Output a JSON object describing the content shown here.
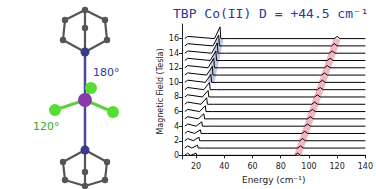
{
  "chart_data": {
    "type": "line",
    "title": "TBP Co(II) D = +44.5 cm⁻¹",
    "x_label": "Energy (cm⁻¹)",
    "y_label": "Magnetic Field (Tesla)",
    "annotations": [
      "180°",
      "120°"
    ],
    "xlim": [
      10,
      140
    ],
    "xticks": [
      20,
      40,
      60,
      80,
      100,
      120,
      140
    ],
    "ylim": [
      -0.5,
      18
    ],
    "yticks": [
      0,
      2,
      4,
      6,
      8,
      10,
      12,
      14,
      16
    ],
    "grid": false,
    "series": [
      {
        "color": "#e8a0a8",
        "line_style": "band",
        "x": [
          92,
          120
        ],
        "values": [
          0,
          16
        ]
      },
      {
        "color": "#a8b8d8",
        "line_style": "band",
        "x": [
          30.5,
          37
        ],
        "values": [
          10,
          16
        ]
      },
      {
        "color": "#000000",
        "line_style": "solid",
        "x": [
          12,
          14,
          16,
          20,
          20.5,
          25,
          90,
          92,
          94,
          140
        ],
        "values": [
          0,
          0.3,
          0,
          0.3,
          0,
          0,
          0,
          0.3,
          0,
          0
        ]
      },
      {
        "color": "#000000",
        "line_style": "solid",
        "x": [
          12,
          14,
          17,
          21,
          21.5,
          26,
          92,
          94,
          96,
          140
        ],
        "values": [
          1,
          1.3,
          1,
          1.4,
          1,
          1,
          1,
          1.3,
          1,
          1
        ]
      },
      {
        "color": "#000000",
        "line_style": "solid",
        "x": [
          12,
          14,
          18,
          22,
          22.5,
          27,
          93.5,
          95.5,
          97.5,
          140
        ],
        "values": [
          2,
          2.3,
          2,
          2.5,
          2,
          2,
          2,
          2.3,
          2,
          2
        ]
      },
      {
        "color": "#000000",
        "line_style": "solid",
        "x": [
          12,
          14,
          19,
          23,
          23.5,
          28,
          95,
          97,
          99,
          140
        ],
        "values": [
          3,
          3.3,
          3,
          3.5,
          3,
          3,
          3,
          3.3,
          3,
          3
        ]
      },
      {
        "color": "#000000",
        "line_style": "solid",
        "x": [
          12,
          14,
          20,
          24,
          24.5,
          29,
          97,
          99,
          101,
          140
        ],
        "values": [
          4,
          4.3,
          4,
          4.6,
          4,
          4,
          4,
          4.3,
          4,
          4
        ]
      },
      {
        "color": "#000000",
        "line_style": "solid",
        "x": [
          12,
          14,
          21.5,
          25.5,
          26,
          30.5,
          99,
          101,
          103,
          140
        ],
        "values": [
          5,
          5.3,
          5,
          5.7,
          5,
          5,
          5,
          5.3,
          5,
          5
        ]
      },
      {
        "color": "#000000",
        "line_style": "solid",
        "x": [
          12,
          14,
          22.5,
          26.5,
          27,
          31.5,
          100.5,
          102.5,
          104.5,
          140
        ],
        "values": [
          6,
          6.3,
          6,
          6.8,
          6,
          6,
          6,
          6.3,
          6,
          6
        ]
      },
      {
        "color": "#000000",
        "line_style": "solid",
        "x": [
          12,
          14,
          23.5,
          27.5,
          28,
          32.5,
          102,
          104,
          106,
          140
        ],
        "values": [
          7,
          7.3,
          7,
          7.9,
          7,
          7,
          7,
          7.3,
          7,
          7
        ]
      },
      {
        "color": "#000000",
        "line_style": "solid",
        "x": [
          12,
          14,
          24.5,
          28.5,
          29,
          33.5,
          104,
          106,
          108,
          140
        ],
        "values": [
          8,
          8.3,
          8,
          8.9,
          8,
          8,
          8,
          8.3,
          8,
          8
        ]
      },
      {
        "color": "#000000",
        "line_style": "solid",
        "x": [
          12,
          14,
          25.5,
          29.5,
          30,
          34.5,
          106,
          108,
          110,
          140
        ],
        "values": [
          9,
          9.3,
          9,
          10,
          9,
          9,
          9,
          9.3,
          9,
          9
        ]
      },
      {
        "color": "#000000",
        "line_style": "solid",
        "x": [
          12,
          14,
          26.5,
          30.5,
          31,
          35.5,
          107.5,
          109.5,
          111.5,
          140
        ],
        "values": [
          10,
          10.3,
          10,
          11.1,
          10,
          10,
          10,
          10.3,
          10,
          10
        ]
      },
      {
        "color": "#000000",
        "line_style": "solid",
        "x": [
          12,
          14,
          27.5,
          31.5,
          32,
          36.5,
          109,
          111,
          113,
          140
        ],
        "values": [
          11,
          11.3,
          11,
          12.2,
          11,
          11,
          11,
          11.3,
          11,
          11
        ]
      },
      {
        "color": "#000000",
        "line_style": "solid",
        "x": [
          12,
          14,
          28.5,
          32.5,
          33,
          37.5,
          111,
          113,
          115,
          140
        ],
        "values": [
          12,
          12.3,
          12,
          13.3,
          12,
          12,
          12,
          12.3,
          12,
          12
        ]
      },
      {
        "color": "#000000",
        "line_style": "solid",
        "x": [
          12,
          14,
          30,
          34,
          34.5,
          39,
          113,
          115,
          117,
          140
        ],
        "values": [
          13,
          13.3,
          13,
          14.3,
          13,
          13,
          13,
          13.3,
          13,
          13
        ]
      },
      {
        "color": "#000000",
        "line_style": "solid",
        "x": [
          12,
          14,
          31,
          35,
          35.5,
          40,
          114.5,
          116.5,
          118.5,
          140
        ],
        "values": [
          14,
          14.3,
          14,
          15.4,
          14,
          14,
          14,
          14.3,
          14,
          14
        ]
      },
      {
        "color": "#000000",
        "line_style": "solid",
        "x": [
          12,
          14,
          32,
          36,
          36.5,
          41,
          116,
          118,
          120,
          140
        ],
        "values": [
          15,
          15.3,
          15,
          16.5,
          15,
          15,
          15,
          15.3,
          15,
          15
        ]
      },
      {
        "color": "#000000",
        "line_style": "solid",
        "x": [
          12,
          14,
          33,
          37,
          37.5,
          42,
          118,
          120,
          122,
          140
        ],
        "values": [
          16,
          16.3,
          16,
          17.6,
          16,
          16,
          16,
          16.3,
          16,
          16
        ]
      }
    ]
  }
}
